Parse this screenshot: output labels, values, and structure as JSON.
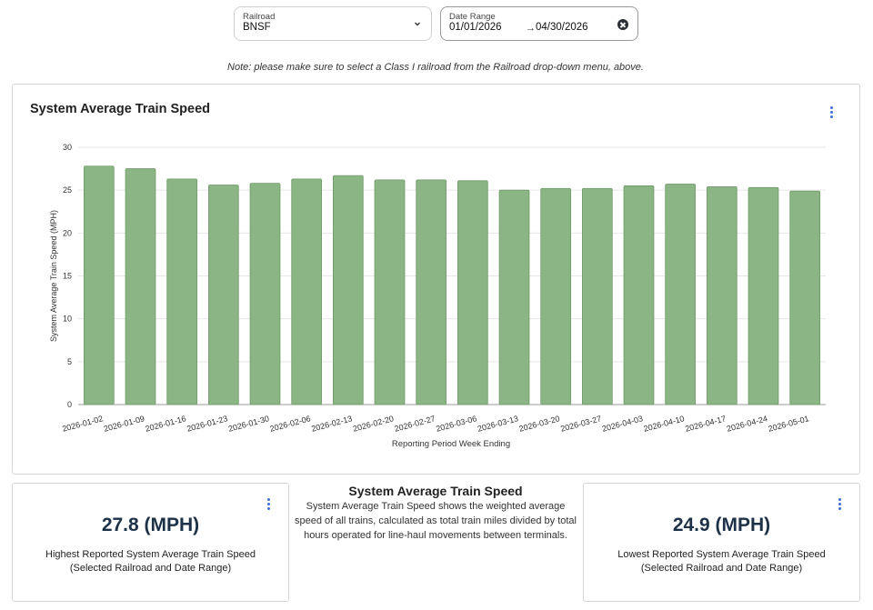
{
  "filters": {
    "railroad": {
      "label": "Railroad",
      "value": "BNSF"
    },
    "date_range": {
      "label": "Date Range",
      "start": "01/01/2026",
      "end": "04/30/2026"
    }
  },
  "note": "Note: please make sure to select a Class I railroad from the Railroad drop-down menu, above.",
  "chart_card": {
    "title": "System Average Train Speed"
  },
  "chart_data": {
    "type": "bar",
    "title": "System Average Train Speed",
    "xlabel": "Reporting Period Week Ending",
    "ylabel": "System Average Train Speed (MPH)",
    "ylim": [
      0,
      30
    ],
    "yticks": [
      0,
      5,
      10,
      15,
      20,
      25,
      30
    ],
    "grid": true,
    "color": "#8bb584",
    "categories": [
      "2026-01-02",
      "2026-01-09",
      "2026-01-16",
      "2026-01-23",
      "2026-01-30",
      "2026-02-06",
      "2026-02-13",
      "2026-02-20",
      "2026-02-27",
      "2026-03-06",
      "2026-03-13",
      "2026-03-20",
      "2026-03-27",
      "2026-04-03",
      "2026-04-10",
      "2026-04-17",
      "2026-04-24",
      "2026-05-01"
    ],
    "values": [
      27.8,
      27.5,
      26.3,
      25.6,
      25.8,
      26.3,
      26.7,
      26.2,
      26.2,
      26.1,
      25.0,
      25.2,
      25.2,
      25.5,
      25.7,
      25.4,
      25.3,
      24.9
    ]
  },
  "stats": {
    "high": {
      "value": "27.8 (MPH)",
      "label_line1": "Highest Reported System Average Train Speed",
      "label_line2": "(Selected Railroad and Date Range)"
    },
    "low": {
      "value": "24.9 (MPH)",
      "label_line1": "Lowest Reported System Average Train Speed",
      "label_line2": "(Selected Railroad and Date Range)"
    }
  },
  "description": {
    "title": "System Average Train Speed",
    "text": "System Average Train Speed shows the weighted average speed of all trains, calculated as total train miles divided by total hours operated for line-haul movements between terminals."
  },
  "icons": {
    "railroad_dropdown": "chevron-down-icon",
    "date_clear": "clear-circle-icon",
    "menu": "more-vertical-icon"
  }
}
